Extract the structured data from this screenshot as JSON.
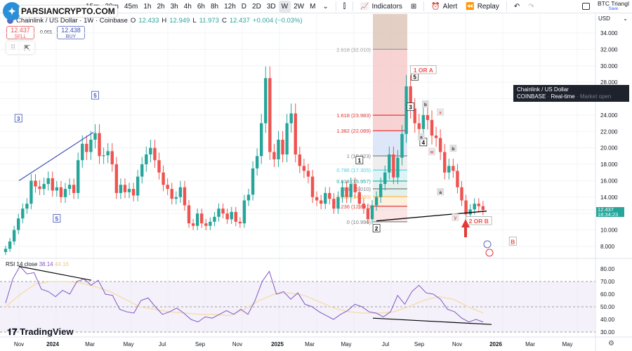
{
  "logo": {
    "text": "PARSIANCRYPTO.COM"
  },
  "toolbar": {
    "timeframes": [
      "15m",
      "30m",
      "45m",
      "1h",
      "2h",
      "3h",
      "4h",
      "6h",
      "8h",
      "12h",
      "D",
      "2D",
      "3D",
      "W",
      "2W",
      "M"
    ],
    "active_timeframe": "W",
    "indicators": "Indicators",
    "alert": "Alert",
    "replay": "Replay",
    "layout_name": "BTC Triangl",
    "save": "Save"
  },
  "legend": {
    "symbol": "Chainlink / US Dollar · 1W · Coinbase",
    "o_label": "O",
    "o": "12.433",
    "h_label": "H",
    "h": "12.949",
    "l_label": "L",
    "l": "11.973",
    "c_label": "C",
    "c": "12.437",
    "change": "+0.004 (+0.03%)"
  },
  "trade": {
    "sell_price": "12.437",
    "sell": "SELL",
    "spread": "0.001",
    "buy_price": "12.438",
    "buy": "BUY"
  },
  "tooltip": {
    "title": "Chainlink / US Dollar",
    "exchange": "COINBASE",
    "realtime": "Real-time",
    "status": "Market open"
  },
  "price_axis": {
    "currency": "USD",
    "ticks": [
      "34.000",
      "32.000",
      "30.000",
      "28.000",
      "26.000",
      "24.000",
      "22.000",
      "20.000",
      "18.000",
      "16.000",
      "14.000",
      "10.000",
      "8.000"
    ],
    "last": "12.437",
    "countdown": "18:34:23"
  },
  "rsi": {
    "label": "RSI 14 close",
    "value": "38.14",
    "ma_value": "44.16",
    "ticks": [
      "80.00",
      "70.00",
      "60.00",
      "50.00",
      "40.00",
      "30.00"
    ]
  },
  "time_axis": [
    "Nov",
    "2024",
    "Mar",
    "May",
    "Jul",
    "Sep",
    "Nov",
    "2025",
    "Mar",
    "May",
    "Jul",
    "Sep",
    "Nov",
    "2026",
    "Mar",
    "May"
  ],
  "branding": "TradingView",
  "colors": {
    "up": "#26a69a",
    "down": "#ef5350",
    "rsi": "#7e57c2",
    "rsi_ma": "#f5deb3",
    "wave_blue": "#3f51b5",
    "wave_red": "#ef5350"
  },
  "fib_levels": [
    {
      "label": "2.618 (32.010)",
      "price": 32.01,
      "color": "#9e9e9e"
    },
    {
      "label": "1.618 (23.983)",
      "price": 23.983,
      "color": "#e53935"
    },
    {
      "label": "1.382 (22.089)",
      "price": 22.089,
      "color": "#e53935"
    },
    {
      "label": "1 (19.023)",
      "price": 19.023,
      "color": "#787b86"
    },
    {
      "label": "0.786 (17.305)",
      "price": 17.305,
      "color": "#4dd0e1"
    },
    {
      "label": "0.618 (15.957)",
      "price": 15.957,
      "color": "#26a69a"
    },
    {
      "label": "0.5 (15.010)",
      "price": 15.01,
      "color": "#787b86"
    },
    {
      "label": "0.382 (14.060)",
      "price": 14.06,
      "color": "#ffb74d"
    },
    {
      "label": "0.236 (12.891)",
      "price": 12.891,
      "color": "#e53935"
    },
    {
      "label": "0 (10.996)",
      "price": 10.996,
      "color": "#787b86"
    }
  ],
  "wave_labels": [
    {
      "text": "3",
      "price": 23.4,
      "week": 3,
      "style": "blue"
    },
    {
      "text": "5",
      "price": 26.2,
      "week": 21,
      "style": "blue"
    },
    {
      "text": "5",
      "price": 11.2,
      "week": 12,
      "style": "blue"
    },
    {
      "text": "1",
      "price": 18.3,
      "week": 83,
      "style": "black"
    },
    {
      "text": "2",
      "price": 10.0,
      "week": 87,
      "style": "black"
    },
    {
      "text": "3",
      "price": 24.8,
      "week": 95,
      "style": "black"
    },
    {
      "text": "4",
      "price": 20.5,
      "week": 98,
      "style": "black"
    },
    {
      "text": "5",
      "price": 28.5,
      "week": 96,
      "style": "black"
    },
    {
      "text": "1 OR A",
      "price": 29.3,
      "week": 98,
      "style": "red"
    },
    {
      "text": "b",
      "price": 25.2,
      "week": 98.5,
      "style": "small"
    },
    {
      "text": "a",
      "price": 21.2,
      "week": 97.5,
      "style": "small"
    },
    {
      "text": "x",
      "price": 24.2,
      "week": 102,
      "style": "smallred"
    },
    {
      "text": "w",
      "price": 19.4,
      "week": 100,
      "style": "smallred"
    },
    {
      "text": "b",
      "price": 19.8,
      "week": 105,
      "style": "small"
    },
    {
      "text": "a",
      "price": 14.5,
      "week": 102,
      "style": "small"
    },
    {
      "text": "y",
      "price": 11.4,
      "week": 105.5,
      "style": "smallred"
    },
    {
      "text": "2 OR B",
      "price": 10.9,
      "week": 111,
      "style": "red"
    },
    {
      "text": "B",
      "price": 8.4,
      "week": 119,
      "style": "red"
    }
  ],
  "chart_data": {
    "type": "candlestick",
    "symbol": "Chainlink / US Dollar",
    "interval": "1W",
    "exchange": "Coinbase",
    "ylim": [
      7,
      35
    ],
    "close": [
      7.7,
      8.6,
      10.0,
      11.4,
      12.6,
      13.2,
      16.0,
      15.3,
      15.0,
      15.6,
      16.3,
      14.8,
      15.2,
      14.0,
      15.0,
      15.5,
      14.5,
      18.5,
      20.5,
      19.5,
      21.0,
      21.8,
      19.0,
      19.1,
      19.6,
      18.0,
      14.5,
      15.5,
      14.6,
      15.0,
      14.2,
      16.5,
      18.0,
      19.2,
      20.0,
      18.5,
      17.0,
      15.5,
      15.0,
      13.8,
      14.0,
      15.2,
      13.0,
      10.8,
      10.5,
      12.0,
      10.8,
      10.5,
      11.0,
      11.6,
      12.6,
      12.0,
      11.3,
      12.2,
      11.0,
      10.8,
      13.6,
      14.3,
      17.5,
      19.0,
      23.0,
      28.5,
      19.5,
      18.6,
      21.0,
      19.2,
      23.0,
      24.2,
      19.2,
      17.8,
      17.2,
      16.5,
      14.0,
      13.6,
      13.2,
      14.5,
      13.8,
      12.6,
      14.0,
      15.2,
      14.0,
      15.6,
      14.6,
      13.2,
      12.6,
      11.3,
      13.0,
      14.0,
      15.6,
      17.0,
      19.2,
      16.4,
      18.8,
      21.7,
      27.5,
      24.8,
      23.0,
      22.3,
      24.0,
      23.4,
      21.5,
      21.2,
      19.5,
      17.0,
      17.8,
      17.2,
      15.2,
      13.6,
      11.9,
      12.5,
      13.2,
      12.9,
      12.437
    ],
    "rsi": [
      53,
      72,
      82,
      76,
      77,
      64,
      62,
      58,
      63,
      60,
      70,
      72,
      67,
      71,
      60,
      59,
      48,
      46,
      45,
      55,
      57,
      50,
      44,
      46,
      49,
      45,
      40,
      38,
      42,
      41,
      44,
      47,
      44,
      48,
      44,
      55,
      70,
      78,
      60,
      62,
      56,
      61,
      52,
      50,
      46,
      43,
      40,
      44,
      47,
      52,
      50,
      46,
      45,
      42,
      46,
      59,
      52,
      62,
      67,
      61,
      60,
      56,
      48,
      46,
      41,
      38,
      40,
      38
    ],
    "rsi_ma": [
      50,
      60,
      68,
      70,
      70,
      69,
      66,
      62,
      56,
      50,
      48,
      46,
      45,
      44,
      44,
      43,
      48,
      55,
      60,
      61,
      59,
      54,
      49,
      46,
      45,
      45,
      46,
      50,
      55,
      58,
      56,
      50,
      45
    ],
    "rsi_ylim": [
      25,
      85
    ],
    "rsi_bands": [
      70,
      50,
      30
    ]
  }
}
